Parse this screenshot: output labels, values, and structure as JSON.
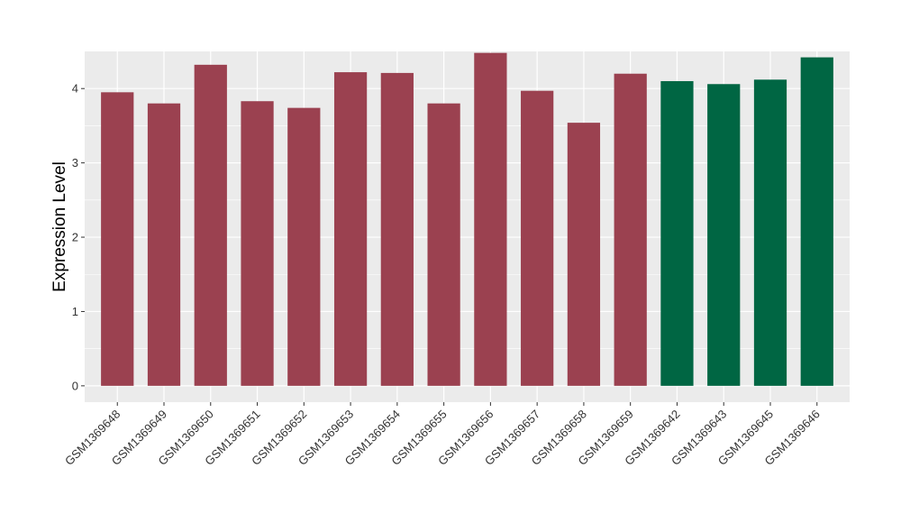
{
  "chart_data": {
    "type": "bar",
    "title": "",
    "xlabel": "",
    "ylabel": "Expression Level",
    "ylim": [
      -0.22,
      4.5
    ],
    "yticks": [
      0,
      1,
      2,
      3,
      4
    ],
    "ytick_labels": [
      "0",
      "1",
      "2",
      "3",
      "4"
    ],
    "grid": true,
    "legend": "none",
    "categories": [
      "GSM1369648",
      "GSM1369649",
      "GSM1369650",
      "GSM1369651",
      "GSM1369652",
      "GSM1369653",
      "GSM1369654",
      "GSM1369655",
      "GSM1369656",
      "GSM1369657",
      "GSM1369658",
      "GSM1369659",
      "GSM1369642",
      "GSM1369643",
      "GSM1369645",
      "GSM1369646"
    ],
    "values": [
      3.95,
      3.8,
      4.32,
      3.83,
      3.74,
      4.22,
      4.21,
      3.8,
      4.48,
      3.97,
      3.54,
      4.2,
      4.1,
      4.06,
      4.12,
      4.42
    ],
    "groups": [
      0,
      0,
      0,
      0,
      0,
      0,
      0,
      0,
      0,
      0,
      0,
      0,
      1,
      1,
      1,
      1
    ],
    "group_colors": [
      "#9B4150",
      "#006643"
    ],
    "panel_background": "#EBEBEB",
    "grid_color": "#FFFFFF"
  }
}
